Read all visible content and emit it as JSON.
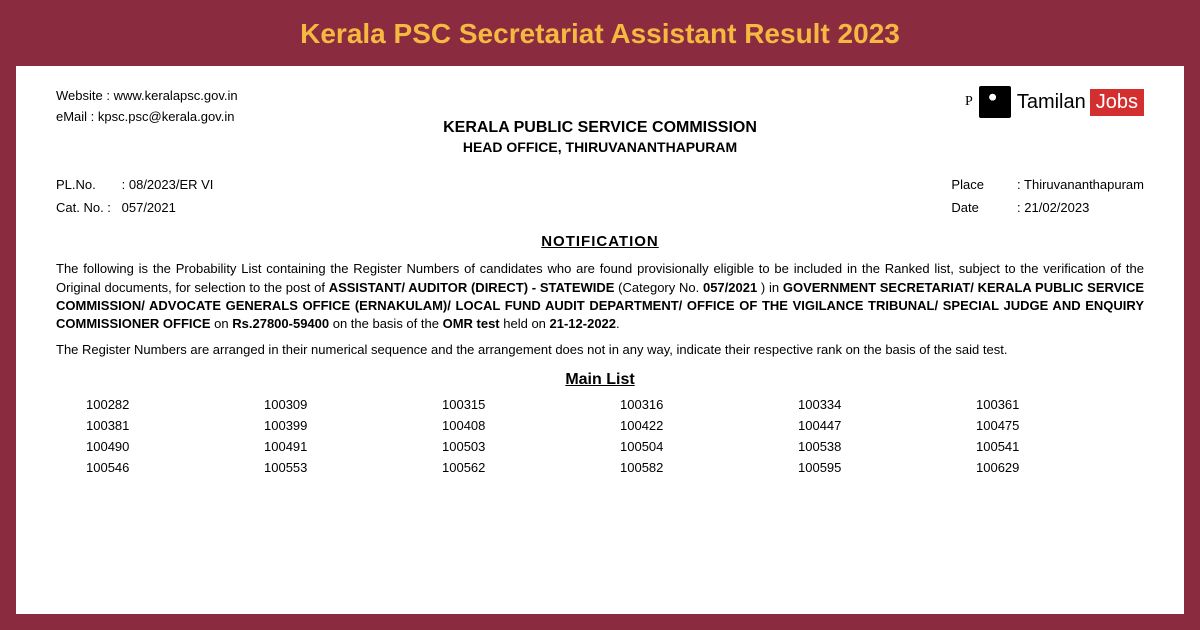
{
  "banner": {
    "title": "Kerala PSC Secretariat Assistant Result 2023",
    "background_color": "#8b2b3f",
    "title_color": "#f5b942",
    "title_fontsize": 28
  },
  "header": {
    "website_label": "Website :",
    "website_value": "www.keralapsc.gov.in",
    "email_label": "eMail :",
    "email_value": "kpsc.psc@kerala.gov.in"
  },
  "logo": {
    "prefix": "P",
    "brand_text": "Tamilan",
    "brand_highlight": "Jobs",
    "highlight_bg": "#d32f2f",
    "highlight_color": "#ffffff"
  },
  "commission": {
    "name": "KERALA PUBLIC SERVICE COMMISSION",
    "office": "HEAD OFFICE, THIRUVANANTHAPURAM"
  },
  "meta": {
    "pl_label": "PL.No.",
    "pl_value": "08/2023/ER VI",
    "cat_label": "Cat. No. :",
    "cat_value": "057/2021",
    "place_label": "Place",
    "place_value": "Thiruvananthapuram",
    "date_label": "Date",
    "date_value": "21/02/2023"
  },
  "notification": {
    "title": "NOTIFICATION",
    "para1_intro": "The following is the Probability List containing the Register Numbers of candidates who are found provisionally eligible to be included in the Ranked list, subject to the verification of the Original documents, for selection to the post of ",
    "para1_bold1": "ASSISTANT/ AUDITOR (DIRECT) - STATEWIDE",
    "para1_mid1": " (Category No. ",
    "para1_bold2": "057/2021",
    "para1_mid2": " ) in ",
    "para1_bold3": "GOVERNMENT SECRETARIAT/ KERALA PUBLIC SERVICE COMMISSION/ ADVOCATE GENERALS OFFICE (ERNAKULAM)/ LOCAL FUND AUDIT DEPARTMENT/ OFFICE OF THE VIGILANCE TRIBUNAL/ SPECIAL JUDGE AND ENQUIRY COMMISSIONER OFFICE",
    "para1_mid3": " on ",
    "para1_bold4": "Rs.27800-59400",
    "para1_mid4": " on the basis of the ",
    "para1_bold5": "OMR test",
    "para1_mid5": " held on ",
    "para1_bold6": "21-12-2022",
    "para1_end": ".",
    "para2": "The Register Numbers are arranged in their numerical sequence and the arrangement does not in any way, indicate their respective rank on the basis of the said test."
  },
  "main_list": {
    "title": "Main List",
    "columns": 6,
    "numbers": [
      "100282",
      "100309",
      "100315",
      "100316",
      "100334",
      "100361",
      "100381",
      "100399",
      "100408",
      "100422",
      "100447",
      "100475",
      "100490",
      "100491",
      "100503",
      "100504",
      "100538",
      "100541",
      "100546",
      "100553",
      "100562",
      "100582",
      "100595",
      "100629"
    ]
  },
  "styling": {
    "document_bg": "#ffffff",
    "text_color": "#000000",
    "body_fontsize": 13,
    "header_fontsize": 16
  }
}
